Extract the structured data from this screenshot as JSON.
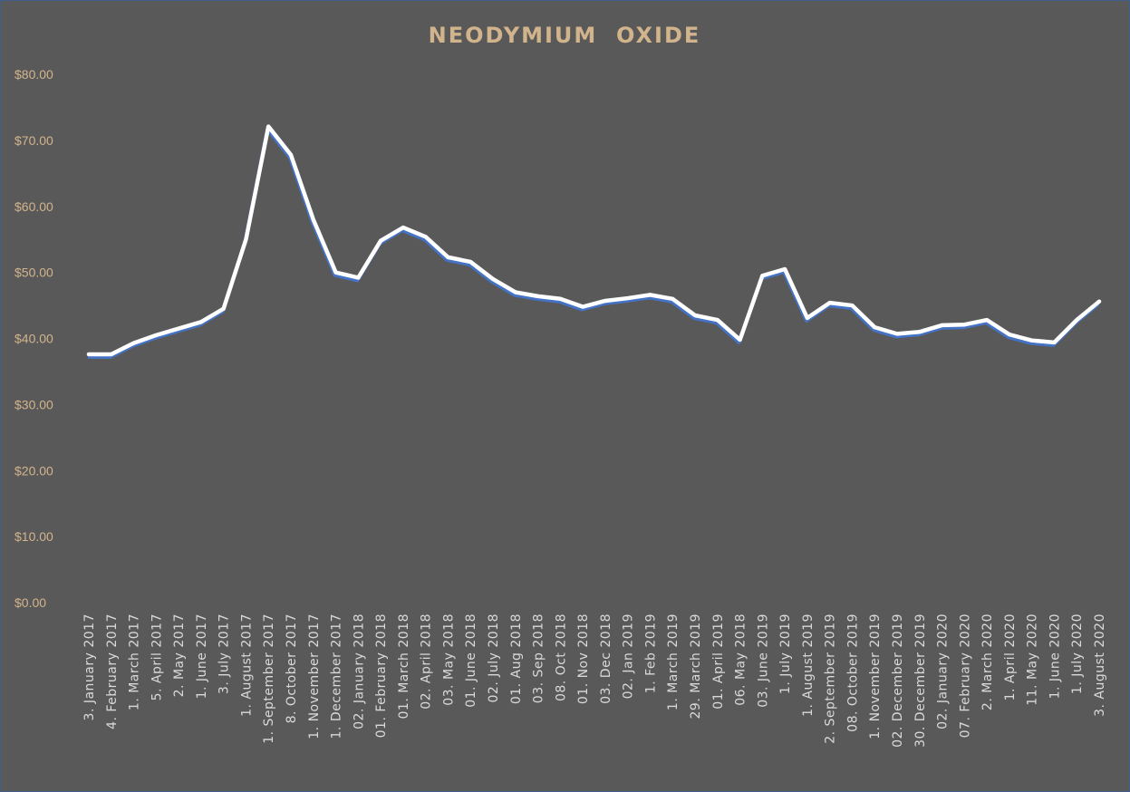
{
  "chart_data": {
    "type": "line",
    "title": "NEODYMIUM  OXIDE",
    "xlabel": "",
    "ylabel": "",
    "ylim": [
      0,
      80
    ],
    "y_ticks": [
      "$0.00",
      "$10.00",
      "$20.00",
      "$30.00",
      "$40.00",
      "$50.00",
      "$60.00",
      "$70.00",
      "$80.00"
    ],
    "grid": false,
    "drop_lines": true,
    "legend": "none",
    "colors": {
      "background": "#595959",
      "line": "#ffffff",
      "line_shadow": "#4472c4",
      "title": "#d2b48c",
      "axis_labels": "#d2b48c",
      "category_labels": "#d9d9d9"
    },
    "categories": [
      "3. January 2017",
      "4. February 2017",
      "1. March 2017",
      "5. April 2017",
      "2. May 2017",
      "1. June 2017",
      "3. July 2017",
      "1. August 2017",
      "1. September 2017",
      "8. October 2017",
      "1. November 2017",
      "1. December 2017",
      "02. January 2018",
      "01. February 2018",
      "01. March 2018",
      "02. April 2018",
      "03. May 2018",
      "01. June 2018",
      "02. July 2018",
      "01. Aug 2018",
      "03. Sep 2018",
      "08. Oct 2018",
      "01. Nov 2018",
      "03. Dec 2018",
      "02. Jan 2019",
      "1. Feb 2019",
      "1. March 2019",
      "29. March 2019",
      "01. April 2019",
      "06. May 2018",
      "03. June 2019",
      "1. July 2019",
      "1. August 2019",
      "2. September 2019",
      "08. October 2019",
      "1. November 2019",
      "02. December 2019",
      "30. December 2019",
      "02. January 2020",
      "07. February 2020",
      "2. March 2020",
      "1. April 2020",
      "11. May 2020",
      "1. June 2020",
      "1. July 2020",
      "3. August 2020"
    ],
    "series": [
      {
        "values": [
          37.6,
          37.6,
          39.3,
          40.5,
          41.5,
          42.5,
          44.5,
          55.0,
          72.1,
          67.8,
          58.0,
          50.0,
          49.2,
          54.8,
          56.8,
          55.4,
          52.3,
          51.6,
          49.0,
          47.0,
          46.4,
          46.0,
          44.8,
          45.7,
          46.1,
          46.6,
          46.0,
          43.5,
          42.8,
          39.8,
          49.5,
          50.5,
          43.1,
          45.4,
          45.0,
          41.7,
          40.7,
          41.0,
          42.0,
          42.1,
          42.8,
          40.6,
          39.7,
          39.4,
          42.8,
          45.6
        ]
      }
    ]
  }
}
